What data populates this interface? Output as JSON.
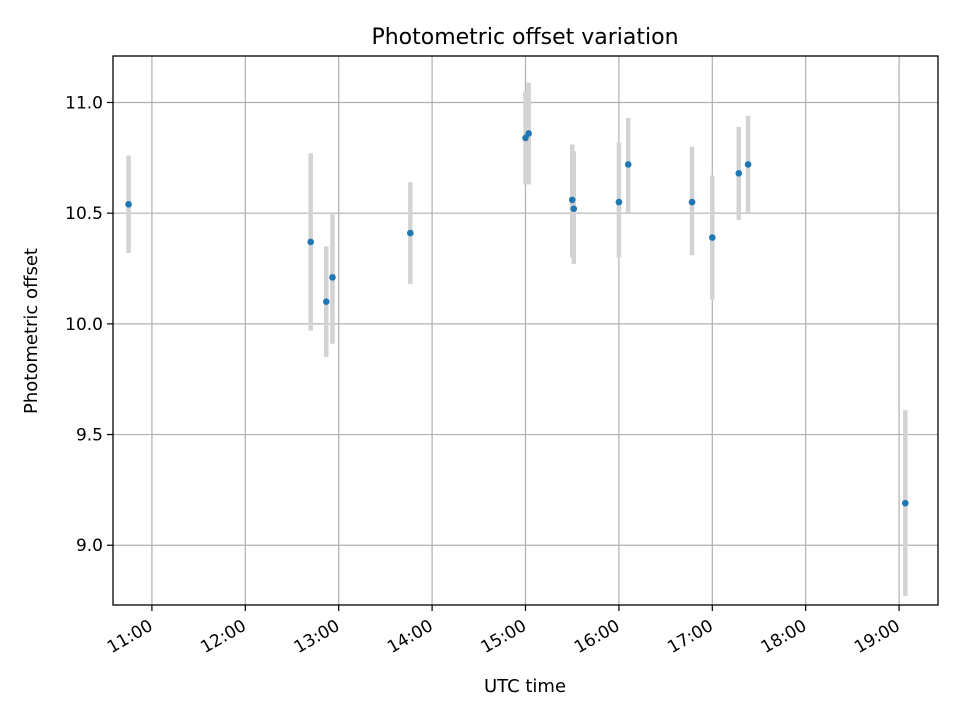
{
  "chart_data": {
    "type": "scatter",
    "title": "Photometric offset variation",
    "xlabel": "UTC time",
    "ylabel": "Photometric offset",
    "xlim": [
      "10:35",
      "19:25"
    ],
    "ylim": [
      8.73,
      11.21
    ],
    "x_ticks": [
      "11:00",
      "12:00",
      "13:00",
      "14:00",
      "15:00",
      "16:00",
      "17:00",
      "18:00",
      "19:00"
    ],
    "y_ticks": [
      9.0,
      9.5,
      10.0,
      10.5,
      11.0
    ],
    "y_tick_labels": [
      "9.0",
      "9.5",
      "10.0",
      "10.5",
      "11.0"
    ],
    "grid": true,
    "marker_color": "#1f77b4",
    "errorbar_color": "#d3d3d3",
    "points": [
      {
        "x": "10:45",
        "y": 10.54,
        "ylo": 10.32,
        "yhi": 10.76
      },
      {
        "x": "12:42",
        "y": 10.37,
        "ylo": 9.97,
        "yhi": 10.77
      },
      {
        "x": "12:52",
        "y": 10.1,
        "ylo": 9.85,
        "yhi": 10.35
      },
      {
        "x": "12:56",
        "y": 10.21,
        "ylo": 9.91,
        "yhi": 10.5
      },
      {
        "x": "13:46",
        "y": 10.41,
        "ylo": 10.18,
        "yhi": 10.64
      },
      {
        "x": "15:00",
        "y": 10.84,
        "ylo": 10.63,
        "yhi": 11.05
      },
      {
        "x": "15:02",
        "y": 10.86,
        "ylo": 10.63,
        "yhi": 11.09
      },
      {
        "x": "15:30",
        "y": 10.56,
        "ylo": 10.3,
        "yhi": 10.81
      },
      {
        "x": "15:31",
        "y": 10.52,
        "ylo": 10.27,
        "yhi": 10.78
      },
      {
        "x": "16:00",
        "y": 10.55,
        "ylo": 10.3,
        "yhi": 10.82
      },
      {
        "x": "16:06",
        "y": 10.72,
        "ylo": 10.5,
        "yhi": 10.93
      },
      {
        "x": "16:47",
        "y": 10.55,
        "ylo": 10.31,
        "yhi": 10.8
      },
      {
        "x": "17:00",
        "y": 10.39,
        "ylo": 10.11,
        "yhi": 10.67
      },
      {
        "x": "17:17",
        "y": 10.68,
        "ylo": 10.47,
        "yhi": 10.89
      },
      {
        "x": "17:23",
        "y": 10.72,
        "ylo": 10.5,
        "yhi": 10.94
      },
      {
        "x": "19:04",
        "y": 9.19,
        "ylo": 8.77,
        "yhi": 9.61
      }
    ]
  }
}
